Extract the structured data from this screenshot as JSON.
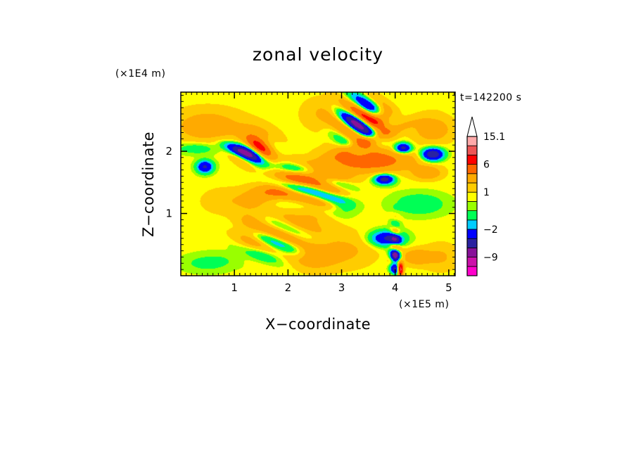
{
  "chart_data": {
    "type": "heatmap",
    "title": "zonal velocity",
    "xlabel": "X−coordinate",
    "ylabel": "Z−coordinate",
    "x_unit": "(×1E5 m)",
    "y_unit": "(×1E4 m)",
    "time_label": "t=142200 s",
    "xlim": [
      0,
      5.12
    ],
    "ylim": [
      0,
      2.95
    ],
    "xticks": [
      1,
      2,
      3,
      4,
      5
    ],
    "yticks": [
      1,
      2
    ],
    "xtick_labels": [
      "1",
      "2",
      "3",
      "4",
      "5"
    ],
    "ytick_labels": [
      "1",
      "2"
    ],
    "colorbar": {
      "labels": [
        {
          "text": "15.1",
          "level": 15.1
        },
        {
          "text": "6",
          "level": 6
        },
        {
          "text": "1",
          "level": 1
        },
        {
          "text": "−2",
          "level": -2
        },
        {
          "text": "−9",
          "level": -9
        }
      ],
      "bins": [
        {
          "min": -14,
          "max": -12,
          "color": "#ff00cc"
        },
        {
          "min": -12,
          "max": -9,
          "color": "#cc11aa"
        },
        {
          "min": -9,
          "max": -6,
          "color": "#881199"
        },
        {
          "min": -6,
          "max": -4,
          "color": "#2a22a0"
        },
        {
          "min": -4,
          "max": -2,
          "color": "#0000ff"
        },
        {
          "min": -2,
          "max": -1,
          "color": "#00ccff"
        },
        {
          "min": -1,
          "max": 0,
          "color": "#00ff55"
        },
        {
          "min": 0,
          "max": 0.5,
          "color": "#99ff00"
        },
        {
          "min": 0.5,
          "max": 1,
          "color": "#ffff00"
        },
        {
          "min": 1,
          "max": 2,
          "color": "#ffcc00"
        },
        {
          "min": 2,
          "max": 4,
          "color": "#ffaa00"
        },
        {
          "min": 4,
          "max": 6,
          "color": "#ff6600"
        },
        {
          "min": 6,
          "max": 9,
          "color": "#ff0000"
        },
        {
          "min": 9,
          "max": 12,
          "color": "#ee5555"
        },
        {
          "min": 12,
          "max": 15.1,
          "color": "#ffaaaa"
        }
      ],
      "extend": "max"
    },
    "blobs": [
      {
        "x": 1.1,
        "z": 2.0,
        "rx": 0.3,
        "rz": 0.08,
        "ang": -20,
        "v": -6
      },
      {
        "x": 0.45,
        "z": 1.75,
        "rx": 0.15,
        "rz": 0.1,
        "ang": 0,
        "v": -5
      },
      {
        "x": 1.45,
        "z": 2.2,
        "rx": 0.35,
        "rz": 0.2,
        "ang": -15,
        "v": 3
      },
      {
        "x": 0.5,
        "z": 2.4,
        "rx": 0.6,
        "rz": 0.25,
        "ang": 0,
        "v": 2.5
      },
      {
        "x": 0.3,
        "z": 2.05,
        "rx": 0.4,
        "rz": 0.1,
        "ang": 0,
        "v": -1.5
      },
      {
        "x": 1.7,
        "z": 1.35,
        "rx": 0.5,
        "rz": 0.15,
        "ang": 10,
        "v": 3
      },
      {
        "x": 2.6,
        "z": 1.6,
        "rx": 0.5,
        "rz": 0.12,
        "ang": 0,
        "v": 3
      },
      {
        "x": 3.5,
        "z": 1.85,
        "rx": 0.8,
        "rz": 0.18,
        "ang": 0,
        "v": 5
      },
      {
        "x": 3.6,
        "z": 2.2,
        "rx": 0.7,
        "rz": 0.1,
        "ang": 20,
        "v": 3
      },
      {
        "x": 3.3,
        "z": 2.5,
        "rx": 0.3,
        "rz": 0.4,
        "ang": 0,
        "v": -1.5
      },
      {
        "x": 3.75,
        "z": 2.55,
        "rx": 0.2,
        "rz": 0.15,
        "ang": 0,
        "v": 4
      },
      {
        "x": 4.15,
        "z": 2.05,
        "rx": 0.15,
        "rz": 0.08,
        "ang": 0,
        "v": -6
      },
      {
        "x": 4.7,
        "z": 1.95,
        "rx": 0.2,
        "rz": 0.1,
        "ang": 0,
        "v": -7
      },
      {
        "x": 4.6,
        "z": 1.65,
        "rx": 0.25,
        "rz": 0.1,
        "ang": 0,
        "v": 3
      },
      {
        "x": 4.7,
        "z": 2.35,
        "rx": 0.35,
        "rz": 0.2,
        "ang": 0,
        "v": 2.5
      },
      {
        "x": 3.8,
        "z": 1.55,
        "rx": 0.18,
        "rz": 0.08,
        "ang": 0,
        "v": -6
      },
      {
        "x": 4.45,
        "z": 1.15,
        "rx": 0.5,
        "rz": 0.18,
        "ang": 0,
        "v": -1.5
      },
      {
        "x": 3.85,
        "z": 0.6,
        "rx": 0.3,
        "rz": 0.12,
        "ang": 0,
        "v": -5
      },
      {
        "x": 4.4,
        "z": 0.3,
        "rx": 0.25,
        "rz": 0.12,
        "ang": 0,
        "v": 3
      },
      {
        "x": 4.85,
        "z": 0.3,
        "rx": 0.3,
        "rz": 0.2,
        "ang": 0,
        "v": 1.5
      },
      {
        "x": 1.3,
        "z": 0.8,
        "rx": 0.3,
        "rz": 0.4,
        "ang": 0,
        "v": 1.5
      },
      {
        "x": 2.4,
        "z": 0.9,
        "rx": 0.6,
        "rz": 0.3,
        "ang": 0,
        "v": 1.5
      },
      {
        "x": 3.1,
        "z": 0.4,
        "rx": 0.5,
        "rz": 0.25,
        "ang": 0,
        "v": 1.5
      },
      {
        "x": 2.7,
        "z": 2.6,
        "rx": 0.4,
        "rz": 0.25,
        "ang": 0,
        "v": 1.5
      },
      {
        "x": 3.0,
        "z": 1.1,
        "rx": 0.3,
        "rz": 0.2,
        "ang": 0,
        "v": -1.5
      },
      {
        "x": 1.6,
        "z": 0.35,
        "rx": 0.7,
        "rz": 0.15,
        "ang": 0,
        "v": -1
      },
      {
        "x": 0.5,
        "z": 0.2,
        "rx": 0.5,
        "rz": 0.15,
        "ang": 0,
        "v": -1
      },
      {
        "x": 4.0,
        "z": 0.25,
        "rx": 0.08,
        "rz": 0.2,
        "ang": 0,
        "v": -6
      },
      {
        "x": 4.1,
        "z": 0.1,
        "rx": 0.05,
        "rz": 0.1,
        "ang": 0,
        "v": 10
      },
      {
        "x": 0.8,
        "z": 1.2,
        "rx": 0.4,
        "rz": 0.2,
        "ang": 0,
        "v": 1
      },
      {
        "x": 2.5,
        "z": 0.3,
        "rx": 0.4,
        "rz": 0.2,
        "ang": 0,
        "v": 2.5
      }
    ],
    "waves": [
      {
        "x": 3.35,
        "z": 2.5,
        "rx": 0.4,
        "rz": 0.35,
        "amp": 7,
        "k": 16,
        "ang": 60
      },
      {
        "x": 1.4,
        "z": 2.0,
        "rx": 0.35,
        "rz": 0.2,
        "amp": 5,
        "k": 14,
        "ang": 55
      },
      {
        "x": 2.1,
        "z": 1.5,
        "rx": 0.4,
        "rz": 0.3,
        "amp": 3,
        "k": 20,
        "ang": 80
      },
      {
        "x": 2.7,
        "z": 1.35,
        "rx": 0.4,
        "rz": 0.25,
        "amp": 2.5,
        "k": 22,
        "ang": 75
      },
      {
        "x": 1.8,
        "z": 0.6,
        "rx": 0.6,
        "rz": 0.3,
        "amp": 2,
        "k": 20,
        "ang": 70
      },
      {
        "x": 4.0,
        "z": 0.4,
        "rx": 0.1,
        "rz": 0.4,
        "amp": 4,
        "k": 25,
        "ang": 80
      }
    ]
  }
}
